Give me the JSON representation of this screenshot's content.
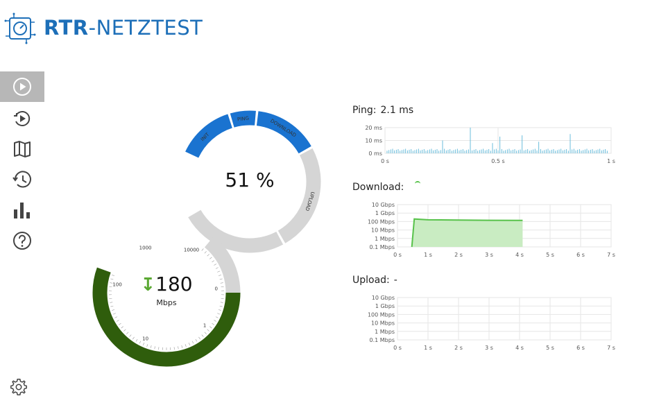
{
  "app": {
    "title_bold": "RTR",
    "title_rest": "-NETZTEST"
  },
  "nav": [
    {
      "name": "start-test",
      "icon": "play-circle-icon",
      "active": true
    },
    {
      "name": "history-play",
      "icon": "replay-icon",
      "active": false
    },
    {
      "name": "map",
      "icon": "map-icon",
      "active": false
    },
    {
      "name": "history",
      "icon": "history-icon",
      "active": false
    },
    {
      "name": "statistics",
      "icon": "bar-chart-icon",
      "active": false
    },
    {
      "name": "help",
      "icon": "help-icon",
      "active": false
    }
  ],
  "settings": {
    "icon": "gear-icon"
  },
  "progress_gauge": {
    "percent_text": "51 %",
    "segments": [
      "INIT",
      "PING",
      "DOWNLOAD",
      "UPLOAD"
    ],
    "completed": [
      "INIT",
      "PING",
      "DOWNLOAD"
    ],
    "color_done": "#1a73d0",
    "color_pending": "#d5d5d5"
  },
  "speed_gauge": {
    "value": "180",
    "unit": "Mbps",
    "ticks": [
      "0",
      "1",
      "10",
      "100",
      "1000",
      "10000"
    ],
    "color_active": "#2f5d0c",
    "color_track": "#d5d5d5"
  },
  "ping": {
    "label": "Ping:",
    "value": "2.1 ms",
    "y_ticks": [
      "20 ms",
      "10 ms",
      "0 ms"
    ],
    "x_ticks": [
      "0 s",
      "0.5 s",
      "1 s"
    ],
    "color": "#5bb7d8"
  },
  "download": {
    "label": "Download:",
    "value": "",
    "y_ticks": [
      "10 Gbps",
      "1 Gbps",
      "100 Mbps",
      "10 Mbps",
      "1 Mbps",
      "0.1 Mbps"
    ],
    "x_ticks": [
      "0 s",
      "1 s",
      "2 s",
      "3 s",
      "4 s",
      "5 s",
      "6 s",
      "7 s"
    ],
    "color": "#57c24a",
    "fill": "#c9ecc2",
    "series_mbps": [
      [
        0.47,
        0.1
      ],
      [
        0.55,
        200
      ],
      [
        1.0,
        160
      ],
      [
        2.0,
        150
      ],
      [
        3.0,
        140
      ],
      [
        4.1,
        138
      ]
    ]
  },
  "upload": {
    "label": "Upload:",
    "value": "-",
    "y_ticks": [
      "10 Gbps",
      "1 Gbps",
      "100 Mbps",
      "10 Mbps",
      "1 Mbps",
      "0.1 Mbps"
    ],
    "x_ticks": [
      "0 s",
      "1 s",
      "2 s",
      "3 s",
      "4 s",
      "5 s",
      "6 s",
      "7 s"
    ]
  }
}
